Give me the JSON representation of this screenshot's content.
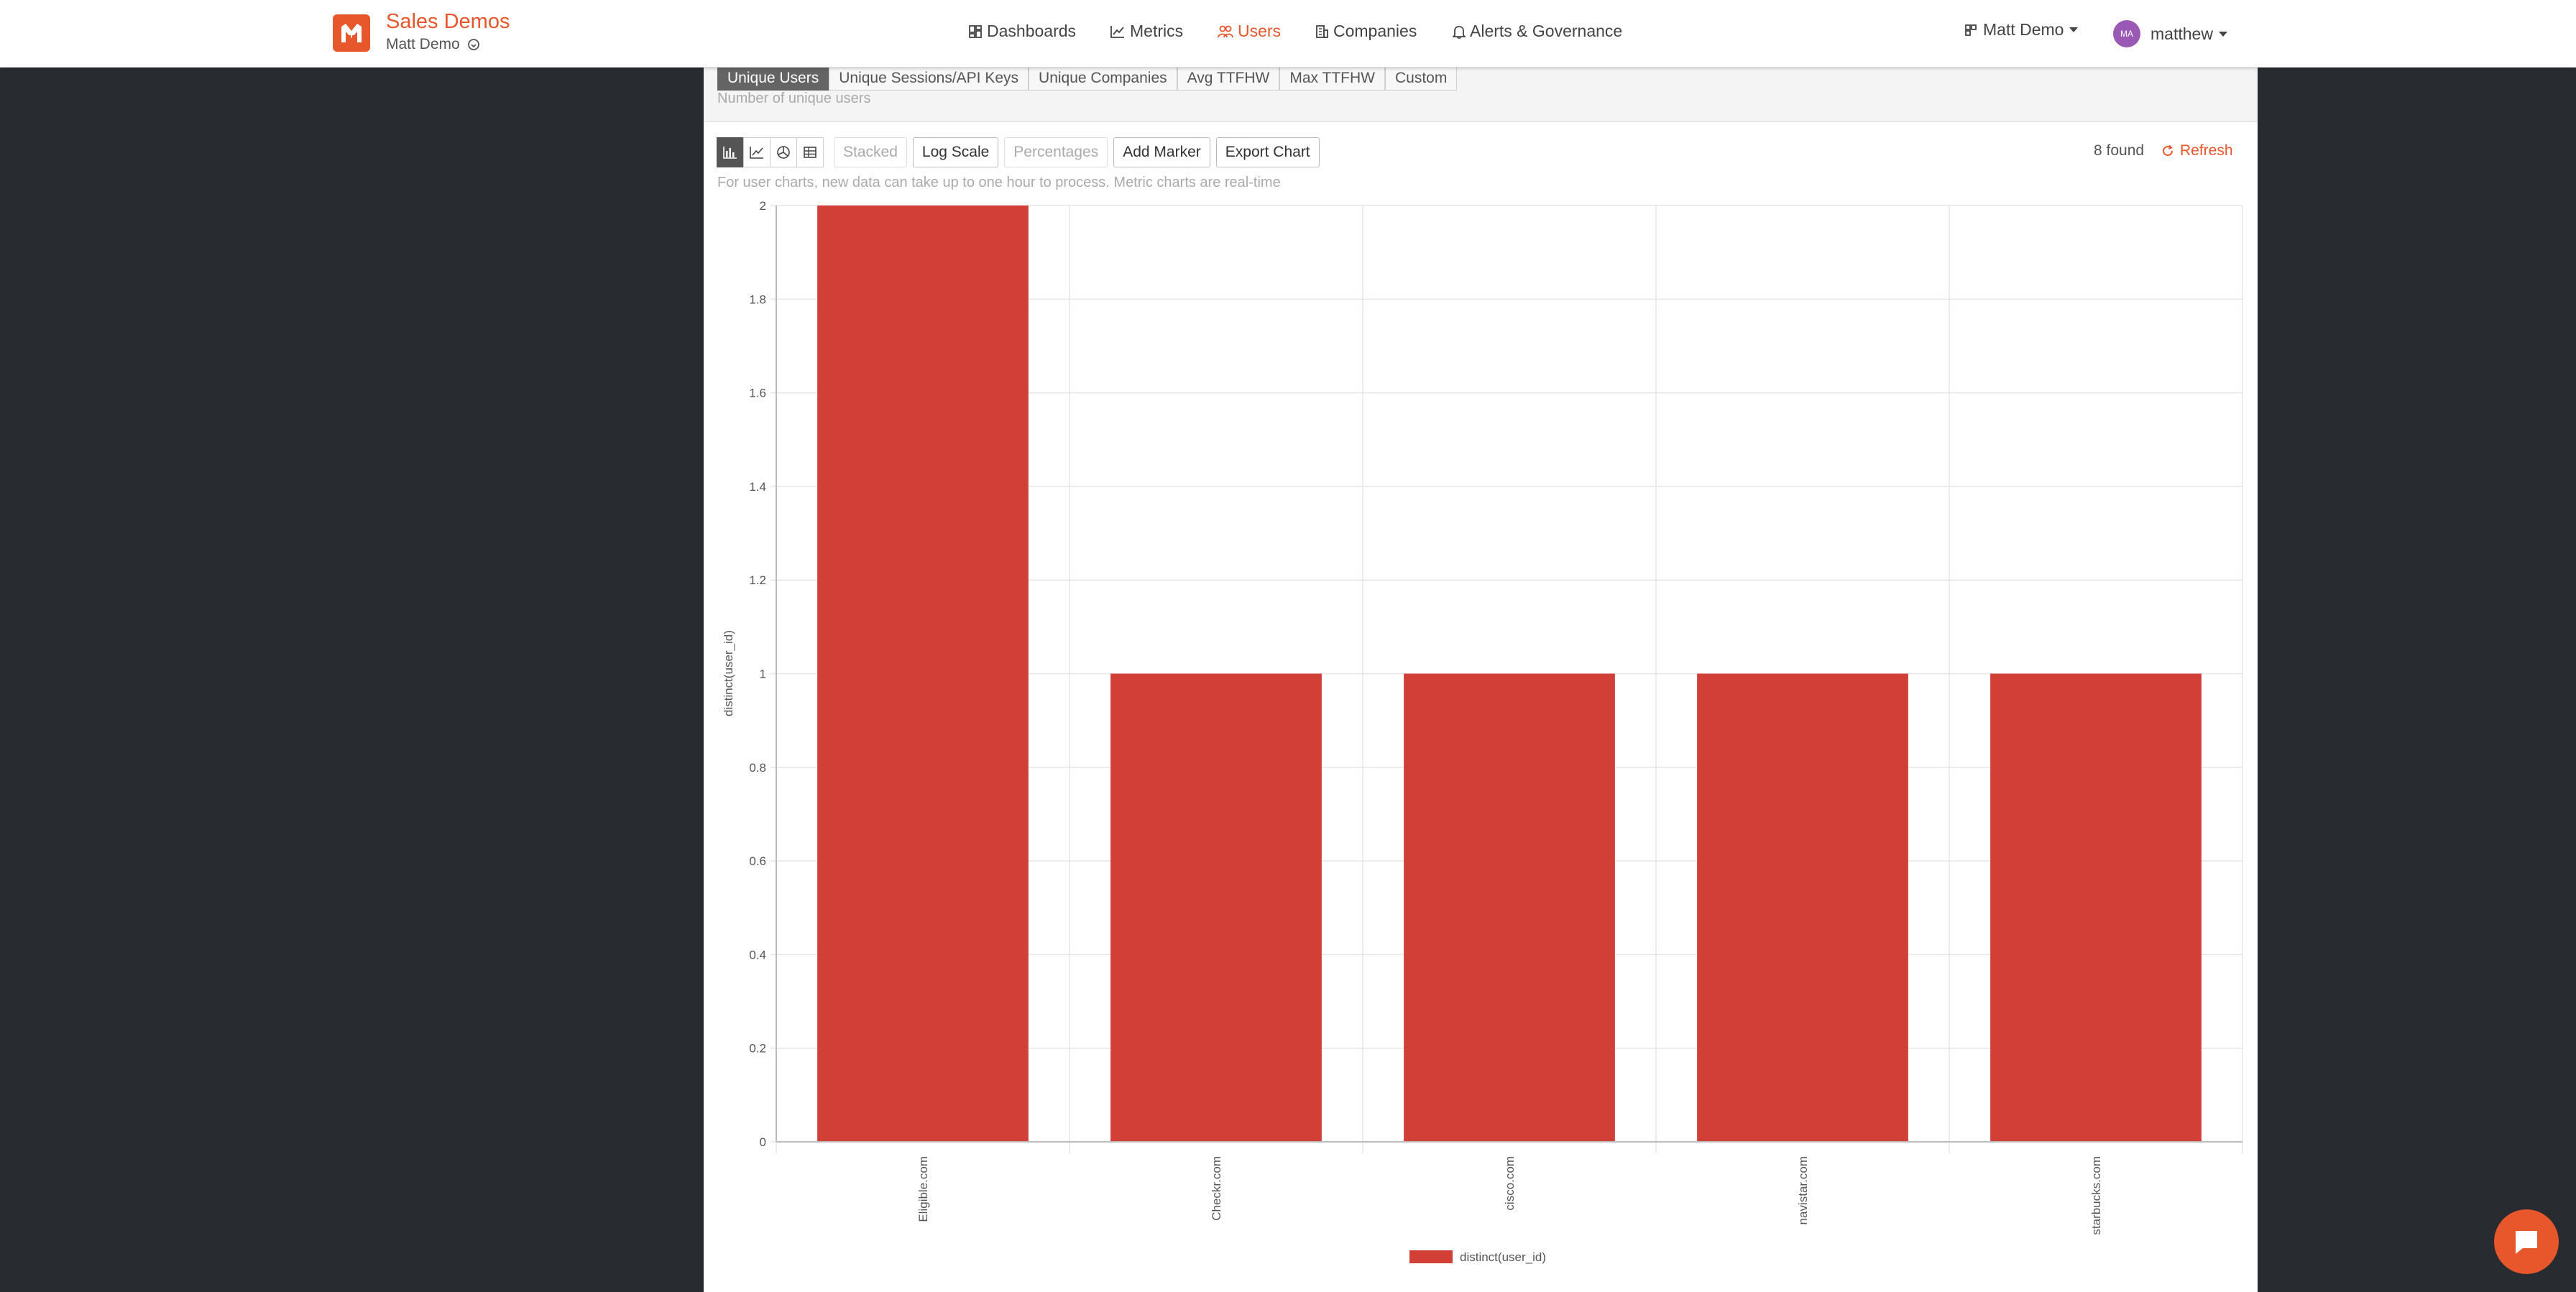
{
  "header": {
    "brand_title": "Sales Demos",
    "brand_subtitle": "Matt Demo",
    "nav": [
      {
        "label": "Dashboards",
        "icon": "dashboard-icon",
        "active": false
      },
      {
        "label": "Metrics",
        "icon": "line-chart-icon",
        "active": false
      },
      {
        "label": "Users",
        "icon": "users-icon",
        "active": true
      },
      {
        "label": "Companies",
        "icon": "building-icon",
        "active": false
      },
      {
        "label": "Alerts & Governance",
        "icon": "bell-icon",
        "active": false
      }
    ],
    "workspace_label": "Matt Demo",
    "user_initials": "MA",
    "user_name": "matthew",
    "accent_color": "#e8562b"
  },
  "metric_tabs": [
    {
      "label": "Unique Users",
      "active": true
    },
    {
      "label": "Unique Sessions/API Keys",
      "active": false
    },
    {
      "label": "Unique Companies",
      "active": false
    },
    {
      "label": "Avg TTFHW",
      "active": false
    },
    {
      "label": "Max TTFHW",
      "active": false
    },
    {
      "label": "Custom",
      "active": false
    }
  ],
  "metric_description": "Number of unique users",
  "toolbar": {
    "view_icons": [
      "bar-chart-icon",
      "line-chart-icon",
      "pie-chart-icon",
      "table-icon"
    ],
    "stacked_label": "Stacked",
    "log_scale_label": "Log Scale",
    "percentages_label": "Percentages",
    "add_marker_label": "Add Marker",
    "export_chart_label": "Export Chart",
    "found_text": "8 found",
    "refresh_label": "Refresh"
  },
  "processing_note": "For user charts, new data can take up to one hour to process. Metric charts are real-time",
  "chart_data": {
    "type": "bar",
    "categories": [
      "Eligible.com",
      "Checkr.com",
      "cisco.com",
      "navistar.com",
      "starbucks.com"
    ],
    "series": [
      {
        "name": "distinct(user_id)",
        "values": [
          2,
          1,
          1,
          1,
          1
        ],
        "color": "#d13f37"
      }
    ],
    "ylabel": "distinct(user_id)",
    "xlabel": "",
    "ylim": [
      0,
      2
    ],
    "yticks": [
      "0",
      "0.2",
      "0.4",
      "0.6",
      "0.8",
      "1",
      "1.2",
      "1.4",
      "1.6",
      "1.8",
      "2"
    ],
    "grid": true,
    "legend": "bottom-center"
  }
}
